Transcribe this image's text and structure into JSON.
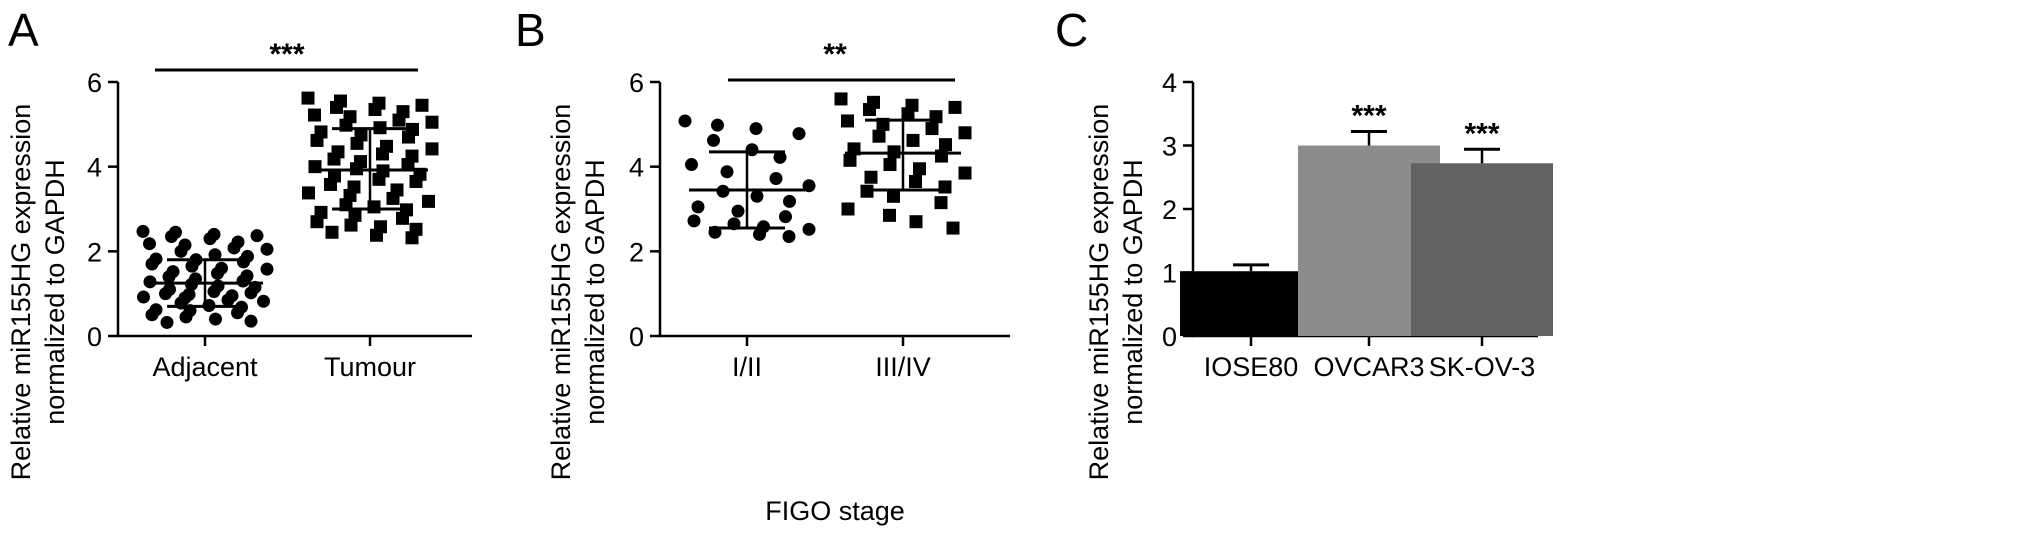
{
  "chart_data": [
    {
      "panel": "A",
      "type": "scatter",
      "ylabel_lines": [
        "Relative miR155HG expression",
        "normalized to GAPDH"
      ],
      "xlabel": "",
      "ylim": [
        0,
        6
      ],
      "yticks": [
        "0",
        "2",
        "4",
        "6"
      ],
      "categories": [
        "Adjacent",
        "Tumour"
      ],
      "significance": "***",
      "series": [
        {
          "category": "Adjacent",
          "marker": "circle",
          "mean": 1.25,
          "sd_low": 0.7,
          "sd_high": 1.8,
          "points": [
            2.47,
            2.45,
            2.4,
            2.37,
            2.35,
            2.3,
            2.22,
            2.18,
            2.15,
            2.08,
            2.05,
            2.0,
            1.92,
            1.88,
            1.82,
            1.8,
            1.75,
            1.7,
            1.65,
            1.6,
            1.58,
            1.52,
            1.48,
            1.42,
            1.4,
            1.35,
            1.3,
            1.28,
            1.22,
            1.18,
            1.15,
            1.1,
            1.05,
            1.02,
            1.0,
            0.98,
            0.95,
            0.92,
            0.9,
            0.85,
            0.82,
            0.78,
            0.72,
            0.68,
            0.62,
            0.6,
            0.55,
            0.5,
            0.45,
            0.4,
            0.35,
            0.32
          ]
        },
        {
          "category": "Tumour",
          "marker": "square",
          "mean": 3.92,
          "sd_low": 3.0,
          "sd_high": 4.9,
          "points": [
            5.62,
            5.55,
            5.5,
            5.45,
            5.4,
            5.35,
            5.3,
            5.22,
            5.18,
            5.1,
            5.05,
            4.98,
            4.92,
            4.88,
            4.82,
            4.75,
            4.7,
            4.62,
            4.55,
            4.48,
            4.42,
            4.35,
            4.3,
            4.25,
            4.18,
            4.12,
            4.05,
            4.0,
            3.95,
            3.9,
            3.82,
            3.78,
            3.7,
            3.65,
            3.58,
            3.52,
            3.45,
            3.38,
            3.32,
            3.25,
            3.18,
            3.1,
            3.05,
            2.98,
            2.92,
            2.85,
            2.78,
            2.7,
            2.62,
            2.58,
            2.52,
            2.45,
            2.38,
            2.32
          ]
        }
      ]
    },
    {
      "panel": "B",
      "type": "scatter",
      "ylabel_lines": [
        "Relative miR155HG expression",
        "normalized to GAPDH"
      ],
      "xlabel": "FIGO stage",
      "ylim": [
        0,
        6
      ],
      "yticks": [
        "0",
        "2",
        "4",
        "6"
      ],
      "categories": [
        "I/II",
        "III/IV"
      ],
      "significance": "**",
      "series": [
        {
          "category": "I/II",
          "marker": "circle",
          "mean": 3.45,
          "sd_low": 2.55,
          "sd_high": 4.35,
          "points": [
            5.08,
            4.98,
            4.9,
            4.78,
            4.62,
            4.4,
            4.22,
            4.05,
            3.88,
            3.72,
            3.55,
            3.42,
            3.3,
            3.18,
            3.05,
            2.95,
            2.82,
            2.72,
            2.65,
            2.58,
            2.52,
            2.45,
            2.4,
            2.35
          ]
        },
        {
          "category": "III/IV",
          "marker": "square",
          "mean": 4.32,
          "sd_low": 3.45,
          "sd_high": 5.1,
          "points": [
            5.6,
            5.52,
            5.45,
            5.4,
            5.35,
            5.25,
            5.18,
            5.08,
            5.0,
            4.9,
            4.8,
            4.72,
            4.62,
            4.52,
            4.42,
            4.35,
            4.25,
            4.15,
            4.05,
            3.95,
            3.85,
            3.75,
            3.65,
            3.52,
            3.42,
            3.3,
            3.15,
            3.0,
            2.85,
            2.7,
            2.55
          ]
        }
      ]
    },
    {
      "panel": "C",
      "type": "bar",
      "ylabel_lines": [
        "Relative miR155HG expression",
        "normalized to GAPDH"
      ],
      "xlabel": "",
      "ylim": [
        0,
        4
      ],
      "yticks": [
        "0",
        "1",
        "2",
        "3",
        "4"
      ],
      "categories": [
        "IOSE80",
        "OVCAR3",
        "SK-OV-3"
      ],
      "values": [
        1.02,
        3.0,
        2.72
      ],
      "errors": [
        0.1,
        0.22,
        0.22
      ],
      "bar_colors": [
        "#000000",
        "#8c8c8c",
        "#626262"
      ],
      "significance": [
        "",
        "***",
        "***"
      ]
    }
  ]
}
